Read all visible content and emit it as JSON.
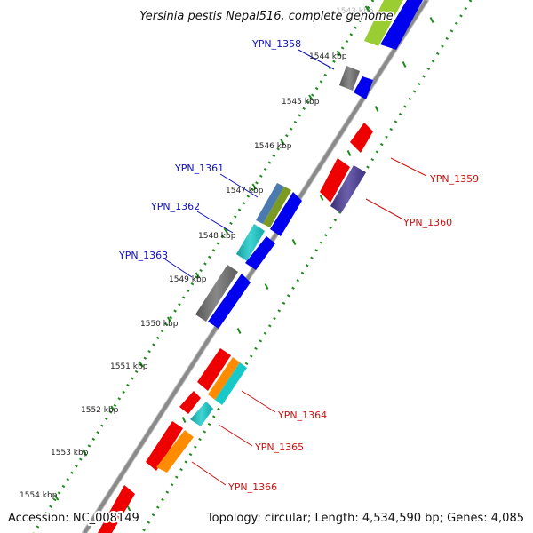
{
  "title": "Yersinia pestis Nepal516, complete genome",
  "footer": {
    "accession": "Accession: NC_008149",
    "stats": "Topology: circular; Length: 4,534,590 bp; Genes: 4,085"
  },
  "ticks": [
    {
      "label": "1543 kbp",
      "kbp": 1543,
      "faded": true
    },
    {
      "label": "1544 kbp",
      "kbp": 1544
    },
    {
      "label": "1545 kbp",
      "kbp": 1545
    },
    {
      "label": "1546 kbp",
      "kbp": 1546
    },
    {
      "label": "1547 kbp",
      "kbp": 1547
    },
    {
      "label": "1548 kbp",
      "kbp": 1548
    },
    {
      "label": "1549 kbp",
      "kbp": 1549
    },
    {
      "label": "1550 kbp",
      "kbp": 1550
    },
    {
      "label": "1551 kbp",
      "kbp": 1551
    },
    {
      "label": "1552 kbp",
      "kbp": 1552
    },
    {
      "label": "1553 kbp",
      "kbp": 1553
    },
    {
      "label": "1554 kbp",
      "kbp": 1554
    }
  ],
  "gene_labels": [
    {
      "id": "YPN_1358",
      "strand": "forward",
      "color": "#1010c0"
    },
    {
      "id": "YPN_1361",
      "strand": "forward",
      "color": "#1010c0"
    },
    {
      "id": "YPN_1362",
      "strand": "forward",
      "color": "#1010c0"
    },
    {
      "id": "YPN_1363",
      "strand": "forward",
      "color": "#1010c0"
    },
    {
      "id": "YPN_1359",
      "strand": "reverse",
      "color": "#cc1111"
    },
    {
      "id": "YPN_1360",
      "strand": "reverse",
      "color": "#cc1111"
    },
    {
      "id": "YPN_1364",
      "strand": "reverse",
      "color": "#cc1111"
    },
    {
      "id": "YPN_1365",
      "strand": "reverse",
      "color": "#cc1111"
    },
    {
      "id": "YPN_1366",
      "strand": "reverse",
      "color": "#cc1111"
    }
  ],
  "colors": {
    "forward_label": "#1010c0",
    "reverse_label": "#cc1111",
    "backbone": "#8a8a8a",
    "green_dots": "#1e8a1e",
    "cds_forward": "#0000ee",
    "cds_reverse": "#ee0000",
    "gray_feature": "#6e6e6e",
    "cyan_feature": "#17c9c9",
    "orange_feature": "#ff8c00",
    "olive_feature": "#7a9a22",
    "steelblue_feature": "#4a7ab0",
    "purple_feature": "#4b3c99",
    "lightgreen_feature": "#9acd32"
  }
}
